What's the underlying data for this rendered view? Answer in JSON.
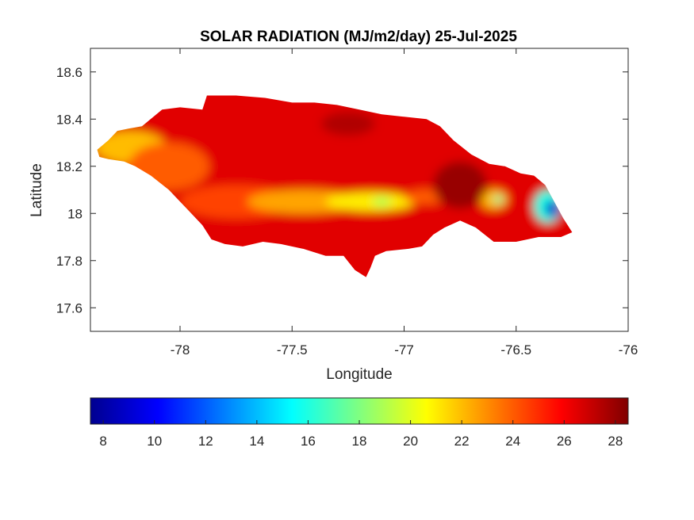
{
  "chart_data": {
    "type": "heatmap",
    "title": "SOLAR RADIATION (MJ/m2/day) 25-Jul-2025",
    "xlabel": "Longitude",
    "ylabel": "Latitude",
    "xlim": [
      -78.4,
      -76.0
    ],
    "ylim": [
      17.5,
      18.7
    ],
    "xticks": [
      -78,
      -77.5,
      -77,
      -76.5,
      -76
    ],
    "xtick_labels": [
      "-78",
      "-77.5",
      "-77",
      "-76.5",
      "-76"
    ],
    "yticks": [
      17.6,
      17.8,
      18,
      18.2,
      18.4,
      18.6
    ],
    "ytick_labels": [
      "17.6",
      "17.8",
      "18",
      "18.2",
      "18.4",
      "18.6"
    ],
    "colormap": "jet",
    "colorbar": {
      "location": "bottom",
      "min": 7.5,
      "max": 28.5,
      "ticks": [
        8,
        10,
        12,
        14,
        16,
        18,
        20,
        22,
        24,
        26,
        28
      ],
      "tick_labels": [
        "8",
        "10",
        "12",
        "14",
        "16",
        "18",
        "20",
        "22",
        "24",
        "26",
        "28"
      ],
      "stops": [
        "#00008f",
        "#0000ff",
        "#0080ff",
        "#00ffff",
        "#80ff80",
        "#ffff00",
        "#ff8000",
        "#ff0000",
        "#800000"
      ]
    },
    "grid": false,
    "outline": [
      [
        -78.37,
        18.27
      ],
      [
        -78.32,
        18.31
      ],
      [
        -78.28,
        18.35
      ],
      [
        -78.23,
        18.36
      ],
      [
        -78.17,
        18.37
      ],
      [
        -78.08,
        18.44
      ],
      [
        -78.0,
        18.45
      ],
      [
        -77.9,
        18.44
      ],
      [
        -77.88,
        18.5
      ],
      [
        -77.75,
        18.5
      ],
      [
        -77.62,
        18.49
      ],
      [
        -77.5,
        18.47
      ],
      [
        -77.4,
        18.47
      ],
      [
        -77.3,
        18.46
      ],
      [
        -77.2,
        18.44
      ],
      [
        -77.1,
        18.42
      ],
      [
        -77.0,
        18.41
      ],
      [
        -76.9,
        18.4
      ],
      [
        -76.84,
        18.37
      ],
      [
        -76.78,
        18.31
      ],
      [
        -76.7,
        18.25
      ],
      [
        -76.62,
        18.21
      ],
      [
        -76.55,
        18.2
      ],
      [
        -76.48,
        18.17
      ],
      [
        -76.42,
        18.16
      ],
      [
        -76.37,
        18.12
      ],
      [
        -76.33,
        18.05
      ],
      [
        -76.29,
        17.98
      ],
      [
        -76.25,
        17.92
      ],
      [
        -76.3,
        17.9
      ],
      [
        -76.4,
        17.9
      ],
      [
        -76.5,
        17.88
      ],
      [
        -76.6,
        17.88
      ],
      [
        -76.68,
        17.94
      ],
      [
        -76.75,
        17.97
      ],
      [
        -76.82,
        17.94
      ],
      [
        -76.87,
        17.91
      ],
      [
        -76.92,
        17.86
      ],
      [
        -76.98,
        17.85
      ],
      [
        -77.08,
        17.84
      ],
      [
        -77.13,
        17.82
      ],
      [
        -77.15,
        17.77
      ],
      [
        -77.17,
        17.73
      ],
      [
        -77.22,
        17.76
      ],
      [
        -77.27,
        17.82
      ],
      [
        -77.35,
        17.82
      ],
      [
        -77.45,
        17.85
      ],
      [
        -77.55,
        17.87
      ],
      [
        -77.63,
        17.88
      ],
      [
        -77.72,
        17.86
      ],
      [
        -77.8,
        17.87
      ],
      [
        -77.86,
        17.89
      ],
      [
        -77.9,
        17.95
      ],
      [
        -77.97,
        18.02
      ],
      [
        -78.05,
        18.1
      ],
      [
        -78.13,
        18.16
      ],
      [
        -78.2,
        18.2
      ],
      [
        -78.25,
        18.22
      ],
      [
        -78.32,
        18.23
      ],
      [
        -78.36,
        18.24
      ]
    ],
    "field_features": [
      {
        "kind": "base",
        "value": 26.5
      },
      {
        "kind": "blob",
        "lon": -78.22,
        "lat": 18.28,
        "rx": 0.16,
        "ry": 0.07,
        "value": 22
      },
      {
        "kind": "blob",
        "lon": -78.05,
        "lat": 18.2,
        "rx": 0.18,
        "ry": 0.1,
        "value": 24
      },
      {
        "kind": "blob",
        "lon": -77.75,
        "lat": 18.05,
        "rx": 0.25,
        "ry": 0.07,
        "value": 24.5
      },
      {
        "kind": "blob",
        "lon": -77.45,
        "lat": 18.05,
        "rx": 0.25,
        "ry": 0.05,
        "value": 22.5
      },
      {
        "kind": "blob",
        "lon": -77.15,
        "lat": 18.05,
        "rx": 0.2,
        "ry": 0.04,
        "value": 21
      },
      {
        "kind": "blob",
        "lon": -77.1,
        "lat": 18.05,
        "rx": 0.04,
        "ry": 0.02,
        "value": 19
      },
      {
        "kind": "blob",
        "lon": -76.9,
        "lat": 18.07,
        "rx": 0.1,
        "ry": 0.03,
        "value": 24
      },
      {
        "kind": "blob",
        "lon": -76.6,
        "lat": 18.06,
        "rx": 0.06,
        "ry": 0.04,
        "value": 22
      },
      {
        "kind": "blob",
        "lon": -76.58,
        "lat": 18.06,
        "rx": 0.02,
        "ry": 0.015,
        "value": 17
      },
      {
        "kind": "blob",
        "lon": -76.36,
        "lat": 18.03,
        "rx": 0.06,
        "ry": 0.07,
        "value": 16
      },
      {
        "kind": "blob",
        "lon": -76.34,
        "lat": 18.02,
        "rx": 0.03,
        "ry": 0.035,
        "value": 9
      },
      {
        "kind": "blob",
        "lon": -77.25,
        "lat": 18.38,
        "rx": 0.12,
        "ry": 0.05,
        "value": 27.5
      },
      {
        "kind": "blob",
        "lon": -76.75,
        "lat": 18.12,
        "rx": 0.12,
        "ry": 0.1,
        "value": 28
      }
    ]
  }
}
